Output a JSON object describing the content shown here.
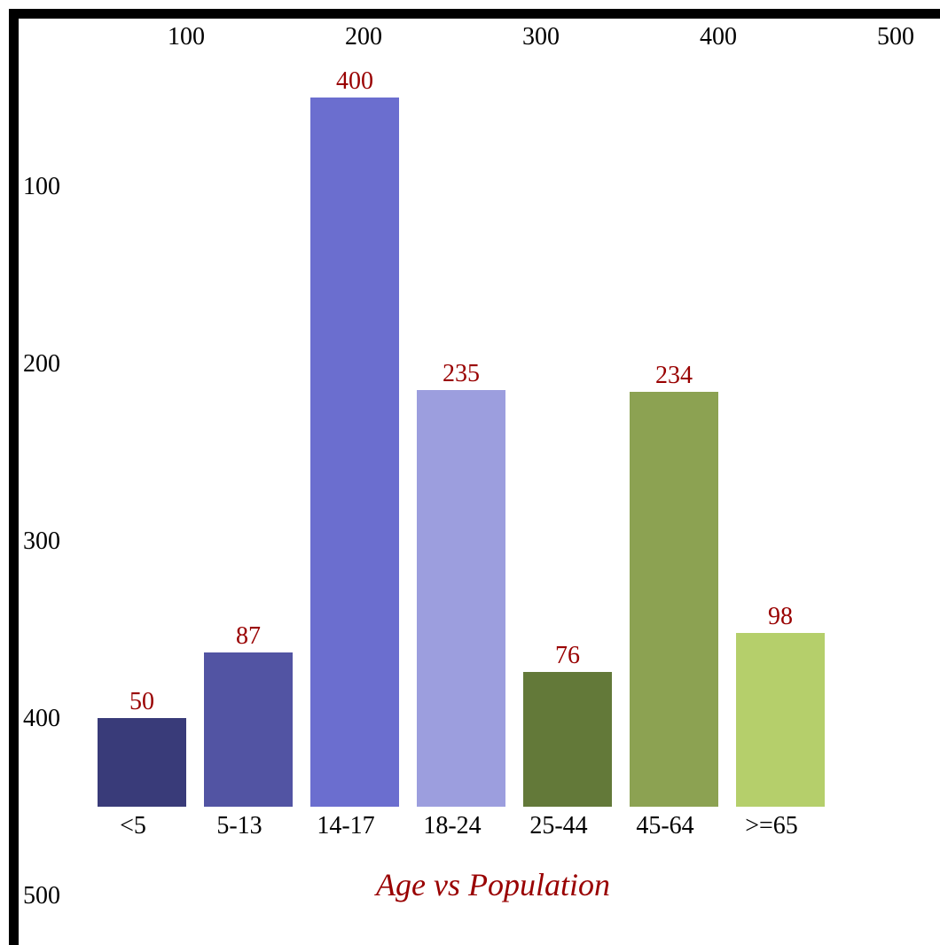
{
  "chart_data": {
    "type": "bar",
    "title": "Age vs Population",
    "categories": [
      "<5",
      "5-13",
      "14-17",
      "18-24",
      "25-44",
      "45-64",
      ">=65"
    ],
    "values": [
      50,
      87,
      400,
      235,
      76,
      234,
      98
    ],
    "bar_colors": [
      "#393b79",
      "#5254a3",
      "#6b6ecf",
      "#9c9ede",
      "#637939",
      "#8ca252",
      "#b5cf6b"
    ],
    "label_color": "#990000",
    "top_axis_ticks": [
      "100",
      "200",
      "300",
      "400",
      "500"
    ],
    "left_axis_ticks": [
      "100",
      "200",
      "300",
      "400",
      "500"
    ],
    "ylim": [
      0,
      400
    ],
    "grid": false,
    "legend": "none"
  }
}
